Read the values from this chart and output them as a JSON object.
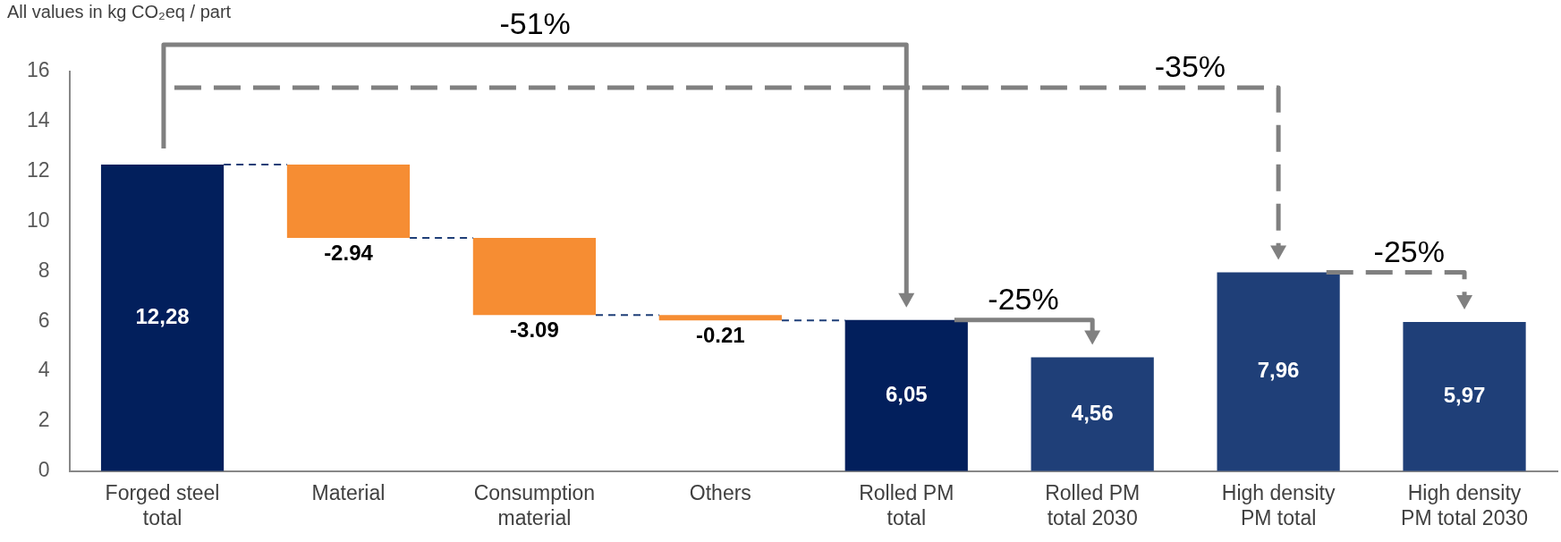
{
  "chart_data": {
    "type": "bar",
    "subtitle": "All values in kg CO₂eq / part",
    "categories": [
      "Forged steel total",
      "Material",
      "Consumption material",
      "Others",
      "Rolled PM total",
      "Rolled PM total 2030",
      "High density PM total",
      "High density PM total 2030"
    ],
    "values": [
      12.28,
      -2.94,
      -3.09,
      -0.21,
      6.05,
      4.56,
      7.96,
      5.97
    ],
    "base": [
      0,
      12.28,
      9.34,
      6.25,
      0,
      0,
      0,
      0
    ],
    "colors": [
      "#021f5c",
      "#f68d33",
      "#f68d33",
      "#f68d33",
      "#021f5c",
      "#1f3f78",
      "#1f3f78",
      "#1f3f78"
    ],
    "value_labels": [
      "12,28",
      "-2.94",
      "-3.09",
      "-0.21",
      "6,05",
      "4,56",
      "7,96",
      "5,97"
    ],
    "annotations": [
      "-51%",
      "-35%",
      "-25%",
      {
        "text": "-25%",
        "x": "High density PM total 2030",
        "y": 5.97
      }
    ],
    "ylim": [
      0,
      16
    ],
    "yticks": [
      0,
      2,
      4,
      6,
      8,
      10,
      12,
      14,
      16
    ],
    "grid": false,
    "legend": false
  }
}
